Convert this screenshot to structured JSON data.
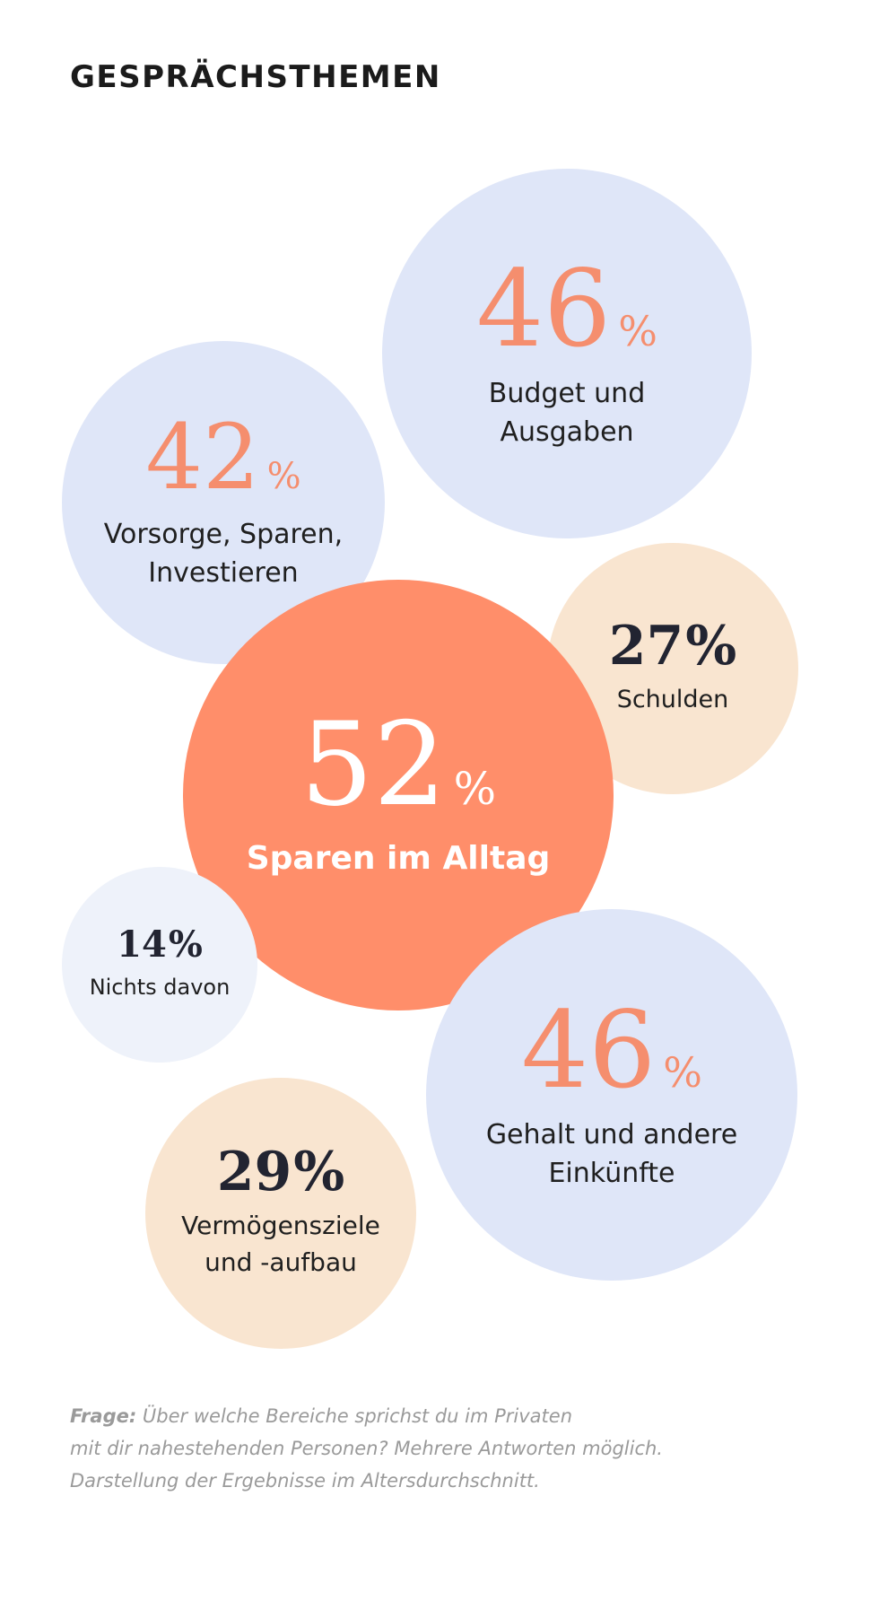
{
  "title": "GESPRÄCHSTHEMEN",
  "colors": {
    "blue": "#dfe6f8",
    "light_blue": "#eef2fa",
    "peach": "#f9e5d0",
    "coral": "#ff8e6a",
    "accent_number": "#f58e6e",
    "dark_number": "#222431",
    "label_dark": "#1f1f1f",
    "label_light": "#ffffff"
  },
  "chart_data": {
    "type": "bubble",
    "title": "GESPRÄCHSTHEMEN",
    "unit": "%",
    "items": [
      {
        "label": "Budget und\nAusgaben",
        "value": 46
      },
      {
        "label": "Vorsorge, Sparen,\nInvestieren",
        "value": 42
      },
      {
        "label": "Schulden",
        "value": 27
      },
      {
        "label": "Sparen im Alltag",
        "value": 52
      },
      {
        "label": "Nichts davon",
        "value": 14
      },
      {
        "label": "Gehalt und andere\nEinkünfte",
        "value": 46
      },
      {
        "label": "Vermögensziele\nund -aufbau",
        "value": 29
      }
    ]
  },
  "footnote": {
    "lead": "Frage:",
    "lines": [
      " Über welche Bereiche sprichst du im Privaten",
      "mit dir nahestehenden Personen? Mehrere Antworten möglich.",
      "Darstellung der Ergebnisse im Altersdurchschnitt."
    ]
  }
}
